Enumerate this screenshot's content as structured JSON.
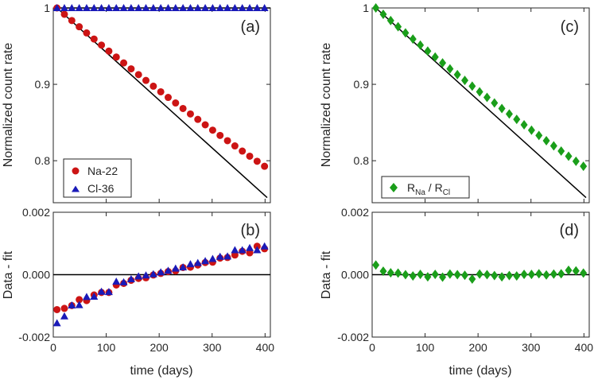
{
  "colors": {
    "na22": "#cc1414",
    "cl36": "#1a1ab8",
    "ratio": "#1a9e1a",
    "fit": "#000000"
  },
  "chart_data": [
    {
      "id": "a",
      "type": "scatter",
      "tag": "(a)",
      "ylabel": "Normalized count rate",
      "xlim": [
        0,
        410
      ],
      "ylim": [
        0.745,
        1.0
      ],
      "yticks": [
        0.8,
        0.9,
        1.0
      ],
      "ytick_labels": [
        "0.8",
        "0.9",
        "1"
      ],
      "x_tick_labels_shown": false,
      "legend": {
        "position": "bottom-left",
        "entries": [
          "Na-22",
          "Cl-36"
        ]
      },
      "series": [
        {
          "name": "Na-22",
          "marker": "circle",
          "color": "na22",
          "x": [
            7,
            21,
            35,
            49,
            63,
            77,
            91,
            105,
            119,
            133,
            147,
            161,
            175,
            189,
            203,
            217,
            231,
            245,
            259,
            273,
            287,
            301,
            315,
            329,
            343,
            357,
            371,
            385,
            399,
            413
          ],
          "y": [
            1.0,
            0.9917,
            0.9835,
            0.9754,
            0.9673,
            0.9593,
            0.9514,
            0.9435,
            0.9357,
            0.928,
            0.9203,
            0.9127,
            0.9051,
            0.8976,
            0.8902,
            0.8829,
            0.8756,
            0.8684,
            0.8612,
            0.8541,
            0.847,
            0.84,
            0.8331,
            0.8262,
            0.8194,
            0.8126,
            0.8059,
            0.7993,
            0.7927,
            0.7861
          ]
        },
        {
          "name": "Cl-36",
          "marker": "triangle",
          "color": "cl36",
          "x": [
            7,
            21,
            35,
            49,
            63,
            77,
            91,
            105,
            119,
            133,
            147,
            161,
            175,
            189,
            203,
            217,
            231,
            245,
            259,
            273,
            287,
            301,
            315,
            329,
            343,
            357,
            371,
            385,
            399,
            413
          ],
          "y": [
            1.0,
            1.0,
            1.0,
            1.0,
            1.0,
            1.0,
            1.0,
            1.0,
            1.0,
            1.0,
            1.0,
            1.0,
            1.0,
            1.0,
            1.0,
            1.0,
            1.0,
            1.0,
            1.0,
            1.0,
            1.0,
            1.0,
            1.0,
            1.0,
            1.0,
            1.0,
            1.0,
            1.0,
            1.0,
            1.0
          ]
        }
      ],
      "fits": [
        {
          "x": [
            7,
            404
          ],
          "y": [
            1.0,
            0.7517
          ]
        },
        {
          "x": [
            7,
            410
          ],
          "y": [
            1.0,
            1.0
          ]
        }
      ]
    },
    {
      "id": "b",
      "type": "scatter",
      "tag": "(b)",
      "ylabel": "Data - fit",
      "xlabel": "time (days)",
      "xlim": [
        0,
        410
      ],
      "ylim": [
        -0.002,
        0.002
      ],
      "yticks": [
        -0.002,
        0.0,
        0.002
      ],
      "ytick_labels": [
        "-0.002",
        "0.000",
        "0.002"
      ],
      "xticks": [
        0,
        100,
        200,
        300,
        400
      ],
      "xtick_labels": [
        "0",
        "100",
        "200",
        "300",
        "400"
      ],
      "zero_line": true,
      "series": [
        {
          "name": "Na-22",
          "marker": "circle",
          "color": "na22",
          "x": [
            7,
            21,
            35,
            49,
            63,
            77,
            91,
            105,
            119,
            133,
            147,
            161,
            175,
            189,
            203,
            217,
            231,
            245,
            259,
            273,
            287,
            301,
            315,
            329,
            343,
            357,
            371,
            385,
            399,
            413
          ],
          "y": [
            -0.00112,
            -0.00108,
            -0.00099,
            -0.0008,
            -0.00083,
            -0.00065,
            -0.00057,
            -0.00057,
            -0.00033,
            -0.00028,
            -0.00018,
            -0.00012,
            -0.0001,
            -1e-05,
            4e-05,
            0.0001,
            0.00012,
            0.00023,
            0.00024,
            0.00031,
            0.00039,
            0.0004,
            0.00053,
            0.00055,
            0.00063,
            0.00075,
            0.0007,
            0.00091,
            0.00083,
            0.00093
          ]
        },
        {
          "name": "Cl-36",
          "marker": "triangle",
          "color": "cl36",
          "x": [
            7,
            21,
            35,
            49,
            63,
            77,
            91,
            105,
            119,
            133,
            147,
            161,
            175,
            189,
            203,
            217,
            231,
            245,
            259,
            273,
            287,
            301,
            315,
            329,
            343,
            357,
            371,
            385,
            399,
            413
          ],
          "y": [
            -0.00155,
            -0.00133,
            -0.00098,
            -0.00097,
            -0.00071,
            -0.0007,
            -0.00054,
            -0.00055,
            -0.00022,
            -0.00024,
            -0.00014,
            -5e-05,
            -2e-05,
            2e-05,
            8e-05,
            0.00013,
            0.0002,
            0.00024,
            0.00034,
            0.00038,
            0.00044,
            0.00051,
            0.00058,
            0.00059,
            0.00079,
            0.00079,
            0.00086,
            0.00079,
            0.00091,
            0.00086
          ]
        }
      ]
    },
    {
      "id": "c",
      "type": "scatter",
      "tag": "(c)",
      "ylabel": "Normalized count rate",
      "xlim": [
        0,
        410
      ],
      "ylim": [
        0.745,
        1.0
      ],
      "yticks": [
        0.8,
        0.9,
        1.0
      ],
      "ytick_labels": [
        "0.8",
        "0.9",
        "1"
      ],
      "x_tick_labels_shown": false,
      "legend": {
        "position": "bottom-left",
        "entries": [
          "R",
          "Na",
          " / R",
          "Cl"
        ]
      },
      "series": [
        {
          "name": "R_Na / R_Cl",
          "marker": "diamond",
          "color": "ratio",
          "x": [
            7,
            21,
            35,
            49,
            63,
            77,
            91,
            105,
            119,
            133,
            147,
            161,
            175,
            189,
            203,
            217,
            231,
            245,
            259,
            273,
            287,
            301,
            315,
            329,
            343,
            357,
            371,
            385,
            399,
            413
          ],
          "y": [
            1.0,
            0.9917,
            0.9835,
            0.9754,
            0.9673,
            0.9593,
            0.9514,
            0.9435,
            0.9357,
            0.928,
            0.9203,
            0.9127,
            0.9051,
            0.8976,
            0.8902,
            0.8829,
            0.8756,
            0.8684,
            0.8612,
            0.8541,
            0.847,
            0.84,
            0.8331,
            0.8262,
            0.8194,
            0.8126,
            0.8059,
            0.7993,
            0.7927,
            0.7861
          ]
        }
      ],
      "fits": [
        {
          "x": [
            7,
            404
          ],
          "y": [
            1.0,
            0.7517
          ]
        }
      ]
    },
    {
      "id": "d",
      "type": "scatter",
      "tag": "(d)",
      "ylabel": "Data - fit",
      "xlabel": "time (days)",
      "xlim": [
        0,
        410
      ],
      "ylim": [
        -0.002,
        0.002
      ],
      "yticks": [
        -0.002,
        0.0,
        0.002
      ],
      "ytick_labels": [
        "-0.002",
        "0.000",
        "0.002"
      ],
      "xticks": [
        0,
        100,
        200,
        300,
        400
      ],
      "xtick_labels": [
        "0",
        "100",
        "200",
        "300",
        "400"
      ],
      "zero_line": true,
      "series": [
        {
          "name": "R_Na / R_Cl",
          "marker": "diamond",
          "color": "ratio",
          "x": [
            7,
            21,
            35,
            49,
            63,
            77,
            91,
            105,
            119,
            133,
            147,
            161,
            175,
            189,
            203,
            217,
            231,
            245,
            259,
            273,
            287,
            301,
            315,
            329,
            343,
            357,
            371,
            385,
            399,
            413
          ],
          "y": [
            0.00031,
            0.00011,
            6e-05,
            5e-05,
            0.0,
            -4e-05,
            1e-05,
            -7e-05,
            1e-05,
            -8e-05,
            2e-05,
            0.0,
            -2e-05,
            -0.00014,
            2e-05,
            0.0,
            -3e-05,
            -7e-05,
            -3e-05,
            -4e-05,
            1e-05,
            1e-05,
            3e-05,
            -1e-05,
            2e-05,
            3e-05,
            0.00014,
            0.00012,
            5e-05,
            0.00017
          ]
        }
      ]
    }
  ]
}
